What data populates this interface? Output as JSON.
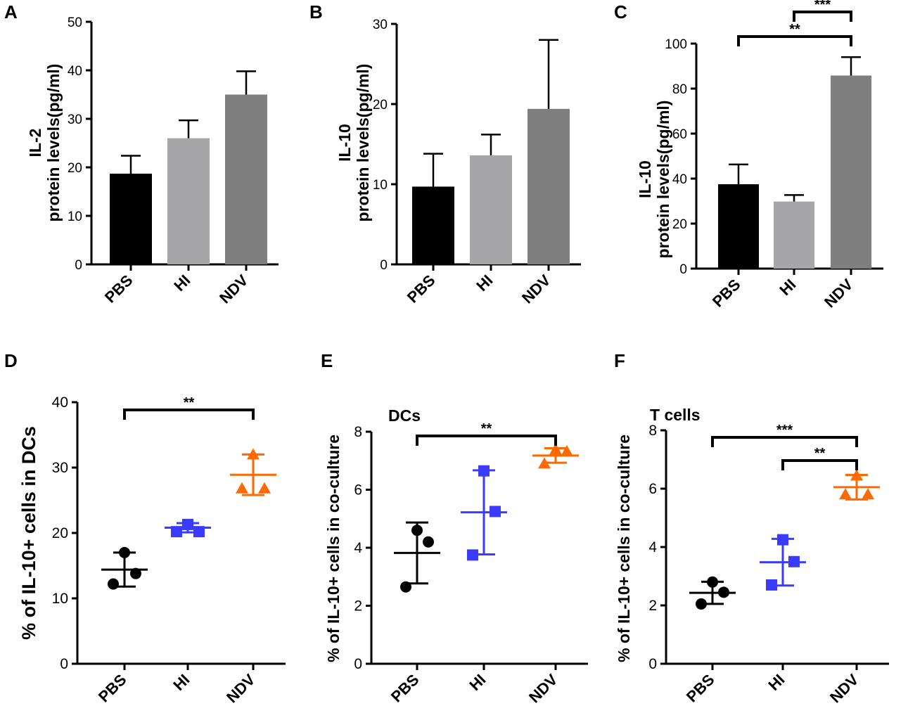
{
  "chart_data": [
    {
      "id": "A",
      "type": "bar",
      "panel_label": "A",
      "ylabel_line1": "IL-2",
      "ylabel_line2": "protein levels(pg/ml)",
      "categories": [
        "PBS",
        "HI",
        "NDV"
      ],
      "values": [
        18.7,
        26.0,
        35.0
      ],
      "errors": [
        3.7,
        3.7,
        4.8
      ],
      "ylim": [
        0,
        50
      ],
      "yticks": [
        0,
        10,
        20,
        30,
        40,
        50
      ],
      "bar_colors": [
        "#000000",
        "#a6a6a8",
        "#7f7f7f"
      ],
      "significance": []
    },
    {
      "id": "B",
      "type": "bar",
      "panel_label": "B",
      "ylabel_line1": "IL-10",
      "ylabel_line2": "protein levels(pg/ml)",
      "categories": [
        "PBS",
        "HI",
        "NDV"
      ],
      "values": [
        9.7,
        13.6,
        19.4
      ],
      "errors": [
        4.1,
        2.6,
        8.6
      ],
      "ylim": [
        0,
        30
      ],
      "yticks": [
        0,
        10,
        20,
        30
      ],
      "bar_colors": [
        "#000000",
        "#a6a6a8",
        "#7f7f7f"
      ],
      "significance": []
    },
    {
      "id": "C",
      "type": "bar",
      "panel_label": "C",
      "ylabel_line1": "IL-10",
      "ylabel_line2": "protein levels(pg/ml)",
      "categories": [
        "PBS",
        "HI",
        "NDV"
      ],
      "values": [
        37.5,
        29.8,
        85.8
      ],
      "errors": [
        8.8,
        2.9,
        8.2
      ],
      "ylim": [
        0,
        100
      ],
      "yticks": [
        0,
        20,
        40,
        60,
        80,
        100
      ],
      "bar_colors": [
        "#000000",
        "#a6a6a8",
        "#7f7f7f"
      ],
      "significance": [
        {
          "from": 0,
          "to": 2,
          "label": "**",
          "level": 2
        },
        {
          "from": 1,
          "to": 2,
          "label": "***",
          "level": 1
        }
      ]
    },
    {
      "id": "D",
      "type": "scatter",
      "panel_label": "D",
      "ylabel": "% of IL-10+ cells in DCs",
      "categories": [
        "PBS",
        "HI",
        "NDV"
      ],
      "points": [
        [
          17.0,
          13.8,
          12.2
        ],
        [
          21.3,
          20.2,
          20.2
        ],
        [
          32.0,
          26.8,
          26.8
        ]
      ],
      "means": [
        14.4,
        20.8,
        28.9
      ],
      "sd": [
        2.6,
        0.7,
        3.1
      ],
      "ylim": [
        0,
        40
      ],
      "yticks": [
        0,
        10,
        20,
        30,
        40
      ],
      "series_colors": [
        "#000000",
        "#3b3bff",
        "#ff6a00"
      ],
      "markers": [
        "circle",
        "square",
        "triangle"
      ],
      "inset_label": "",
      "significance": [
        {
          "from": 0,
          "to": 2,
          "label": "**",
          "level": 1
        }
      ]
    },
    {
      "id": "E",
      "type": "scatter",
      "panel_label": "E",
      "ylabel": "% of IL-10+ cells in co-culture",
      "categories": [
        "PBS",
        "HI",
        "NDV"
      ],
      "points": [
        [
          4.6,
          4.2,
          2.65
        ],
        [
          6.65,
          5.25,
          3.75
        ],
        [
          7.38,
          7.32,
          6.9
        ]
      ],
      "means": [
        3.82,
        5.22,
        7.18
      ],
      "sd": [
        1.05,
        1.45,
        0.25
      ],
      "ylim": [
        0,
        8
      ],
      "yticks": [
        0,
        2,
        4,
        6,
        8
      ],
      "series_colors": [
        "#000000",
        "#3b3bff",
        "#ff6a00"
      ],
      "markers": [
        "circle",
        "square",
        "triangle"
      ],
      "inset_label": "DCs",
      "significance": [
        {
          "from": 0,
          "to": 2,
          "label": "**",
          "level": 1
        }
      ]
    },
    {
      "id": "F",
      "type": "scatter",
      "panel_label": "F",
      "ylabel": "% of IL-10+ cells in co-culture",
      "categories": [
        "PBS",
        "HI",
        "NDV"
      ],
      "points": [
        [
          2.8,
          2.45,
          2.05
        ],
        [
          4.25,
          3.5,
          2.7
        ],
        [
          6.45,
          5.8,
          5.8
        ]
      ],
      "means": [
        2.43,
        3.48,
        6.05
      ],
      "sd": [
        0.38,
        0.8,
        0.42
      ],
      "ylim": [
        0,
        8
      ],
      "yticks": [
        0,
        2,
        4,
        6,
        8
      ],
      "series_colors": [
        "#000000",
        "#3b3bff",
        "#ff6a00"
      ],
      "markers": [
        "circle",
        "square",
        "triangle"
      ],
      "inset_label": "T cells",
      "significance": [
        {
          "from": 0,
          "to": 2,
          "label": "***",
          "level": 2
        },
        {
          "from": 1,
          "to": 2,
          "label": "**",
          "level": 1
        }
      ]
    }
  ]
}
